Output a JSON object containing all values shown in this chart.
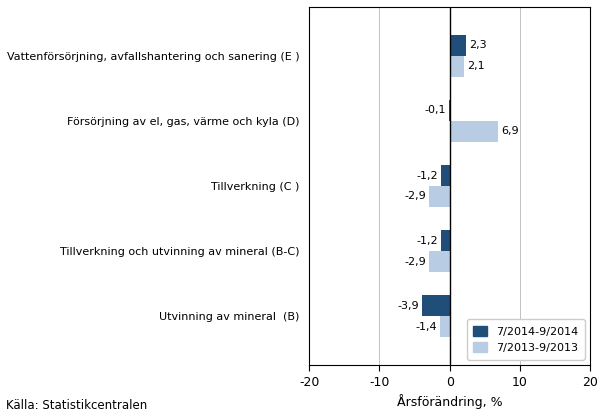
{
  "categories": [
    "Utvinning av mineral  (B)",
    "Tillverkning och utvinning av mineral (B-C)",
    "Tillverkning (C )",
    "Försörjning av el, gas, värme och kyla (D)",
    "Vattenförsörjning, avfallshantering och sanering (E )"
  ],
  "series_2014": [
    -3.9,
    -1.2,
    -1.2,
    -0.1,
    2.3
  ],
  "series_2013": [
    -1.4,
    -2.9,
    -2.9,
    6.9,
    2.1
  ],
  "labels_2014": [
    "-3,9",
    "-1,2",
    "-1,2",
    "-0,1",
    "2,3"
  ],
  "labels_2013": [
    "-1,4",
    "-2,9",
    "-2,9",
    "6,9",
    "2,1"
  ],
  "color_2014": "#1F4E79",
  "color_2013": "#B8CCE4",
  "legend_2014": "7/2014-9/2014",
  "legend_2013": "7/2013-9/2013",
  "xlabel": "Årsförändring, %",
  "xlim": [
    -20,
    20
  ],
  "xticks": [
    -20,
    -10,
    0,
    10,
    20
  ],
  "source": "Källa: Statistikcentralen",
  "bar_height": 0.32
}
